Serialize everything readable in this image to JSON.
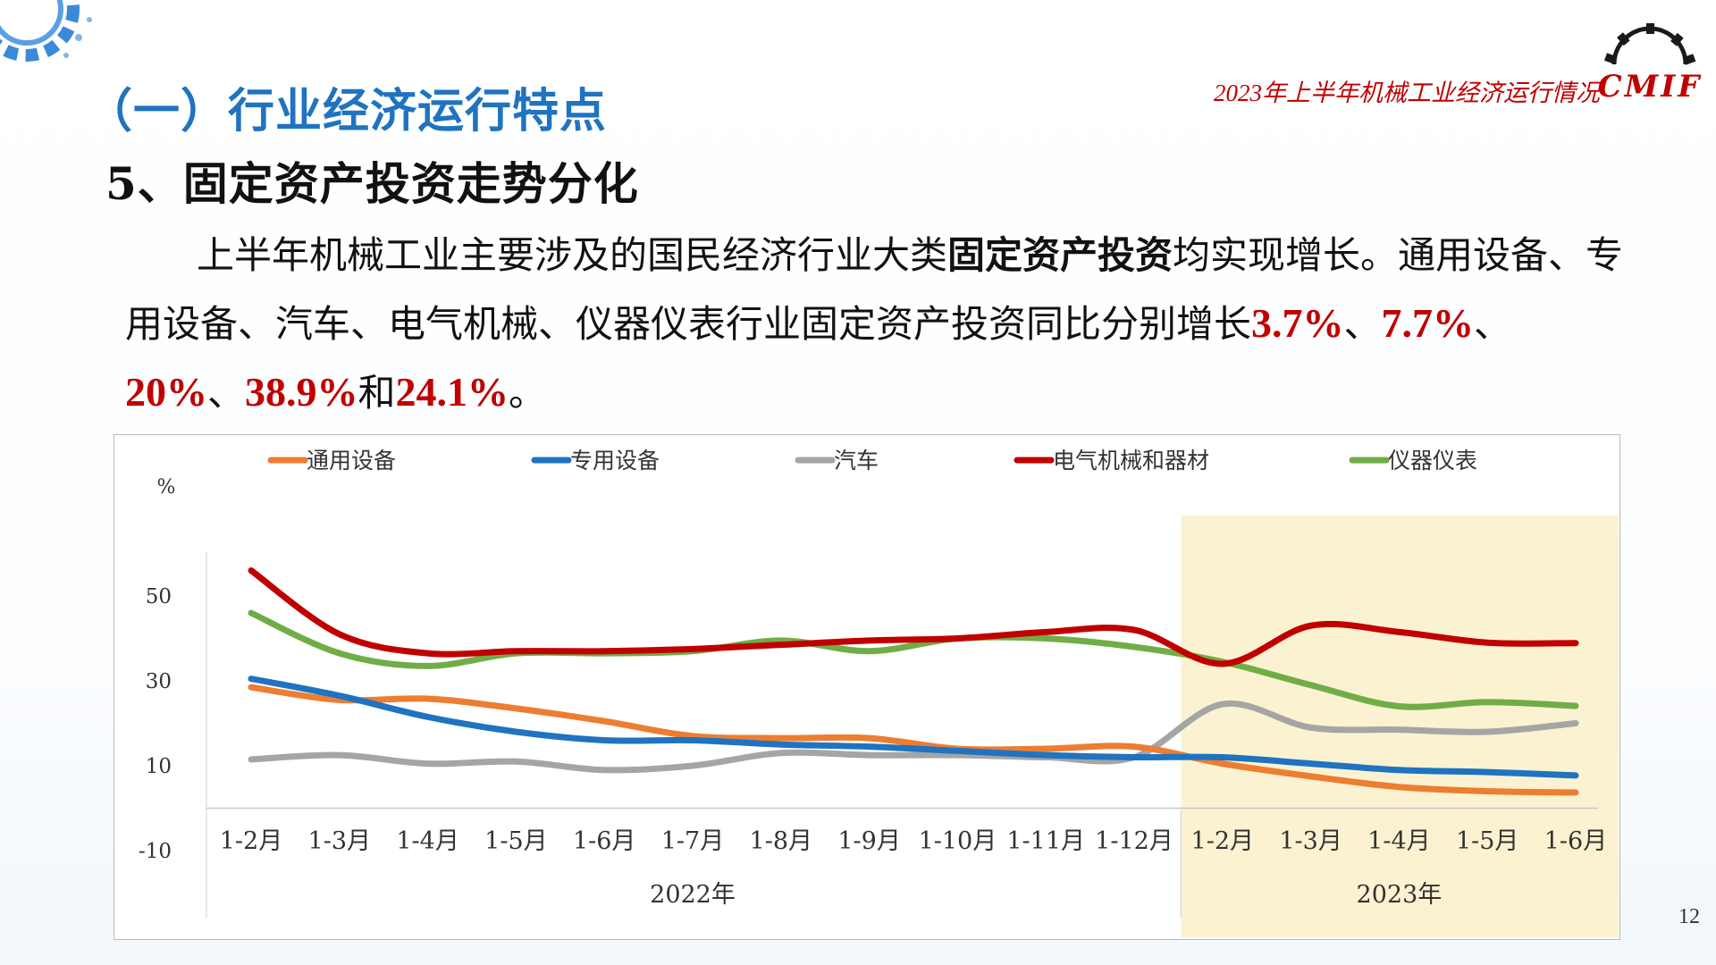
{
  "header": {
    "report_title": "2023年上半年机械工业经济运行情况",
    "logo_text": "CMIF"
  },
  "section_title": "（一）行业经济运行特点",
  "sub_title": "5、固定资产投资走势分化",
  "paragraph": {
    "t1": "上半年机械工业主要涉及的国民经济行业大类",
    "t1_bold": "固定资产投资",
    "t2": "均实现增长。通用设备、专用设备、汽车、电气机械、仪器仪表行业固定资产投资同比分别增长",
    "v1": "3.7%",
    "sep1": "、",
    "v2": "7.7%",
    "sep2": "、",
    "v3": "20%",
    "sep3": "、",
    "v4": "38.9%",
    "and": "和",
    "v5": "24.1%",
    "end": "。"
  },
  "page_number": "12",
  "colors": {
    "title_blue": "#1f73c1",
    "accent_red": "#c00000",
    "highlight_2023": "#fbf2d2"
  },
  "chart_data": {
    "type": "line",
    "ylabel": "%",
    "ylim": [
      -10,
      60
    ],
    "yticks": [
      "50",
      "30",
      "10",
      "-10"
    ],
    "ytick_values": [
      50,
      30,
      10,
      -10
    ],
    "categories": [
      "1-2月",
      "1-3月",
      "1-4月",
      "1-5月",
      "1-6月",
      "1-7月",
      "1-8月",
      "1-9月",
      "1-10月",
      "1-11月",
      "1-12月",
      "1-2月",
      "1-3月",
      "1-4月",
      "1-5月",
      "1-6月"
    ],
    "year_groups": [
      {
        "label": "2022年",
        "start": 0,
        "end": 10
      },
      {
        "label": "2023年",
        "start": 11,
        "end": 15,
        "highlight": true
      }
    ],
    "series": [
      {
        "name": "通用设备",
        "color": "#ed7d31",
        "values": [
          28.5,
          25.5,
          25.8,
          23.5,
          20.5,
          17,
          16.5,
          16.5,
          14,
          14,
          14.5,
          10.5,
          7.5,
          5,
          4,
          3.7
        ]
      },
      {
        "name": "专用设备",
        "color": "#1f73c1",
        "values": [
          30.5,
          26.5,
          21.5,
          18,
          16,
          16,
          15,
          14.5,
          13.5,
          12.5,
          12,
          12,
          10.5,
          9,
          8.5,
          7.7
        ]
      },
      {
        "name": "汽车",
        "color": "#a5a5a5",
        "values": [
          11.5,
          12.5,
          10.5,
          11,
          9,
          10,
          13,
          12.5,
          12.5,
          12,
          12,
          24.5,
          19,
          18.5,
          18,
          20
        ]
      },
      {
        "name": "电气机械和器材",
        "color": "#c00000",
        "values": [
          56,
          41,
          36.5,
          37,
          37,
          37.5,
          38.5,
          39.5,
          40,
          41.5,
          42,
          34,
          43,
          41.5,
          39,
          38.9
        ]
      },
      {
        "name": "仪器仪表",
        "color": "#70ad47",
        "values": [
          46,
          36.5,
          33.5,
          36.5,
          36.5,
          37,
          39.5,
          37,
          40,
          40,
          38,
          34.5,
          29,
          24,
          25,
          24.1
        ]
      }
    ]
  }
}
